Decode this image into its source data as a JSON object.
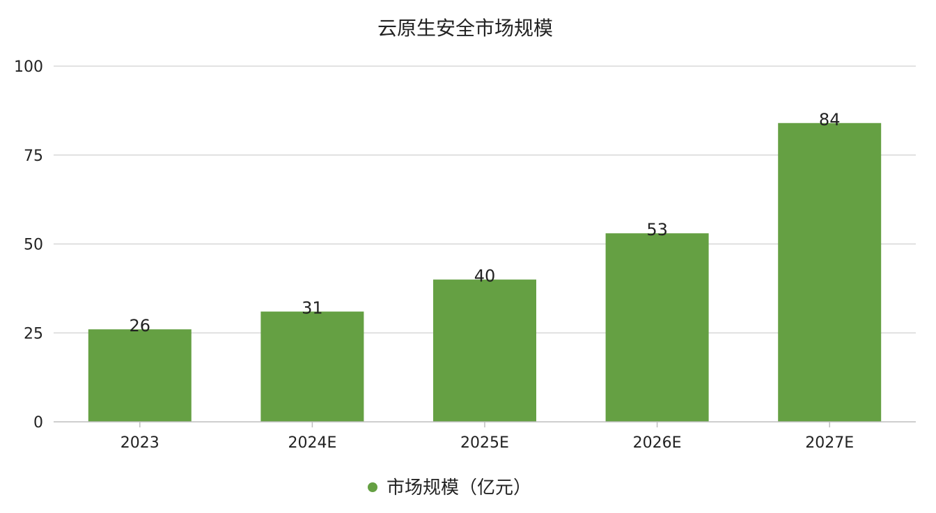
{
  "chart_data": {
    "type": "bar",
    "title": "云原生安全市场规模",
    "categories": [
      "2023",
      "2024E",
      "2025E",
      "2026E",
      "2027E"
    ],
    "series": [
      {
        "name": "市场规模（亿元）",
        "values": [
          26,
          31,
          40,
          53,
          84
        ],
        "color": "#65a043"
      }
    ],
    "ylim": [
      0,
      100
    ],
    "yticks": [
      0,
      25,
      50,
      75,
      100
    ],
    "grid": true,
    "legend_position": "bottom",
    "data_labels": true,
    "xlabel": "",
    "ylabel": ""
  },
  "colors": {
    "gridline": "#d0d0d0",
    "axis": "#bdbdbd",
    "text": "#222222"
  }
}
